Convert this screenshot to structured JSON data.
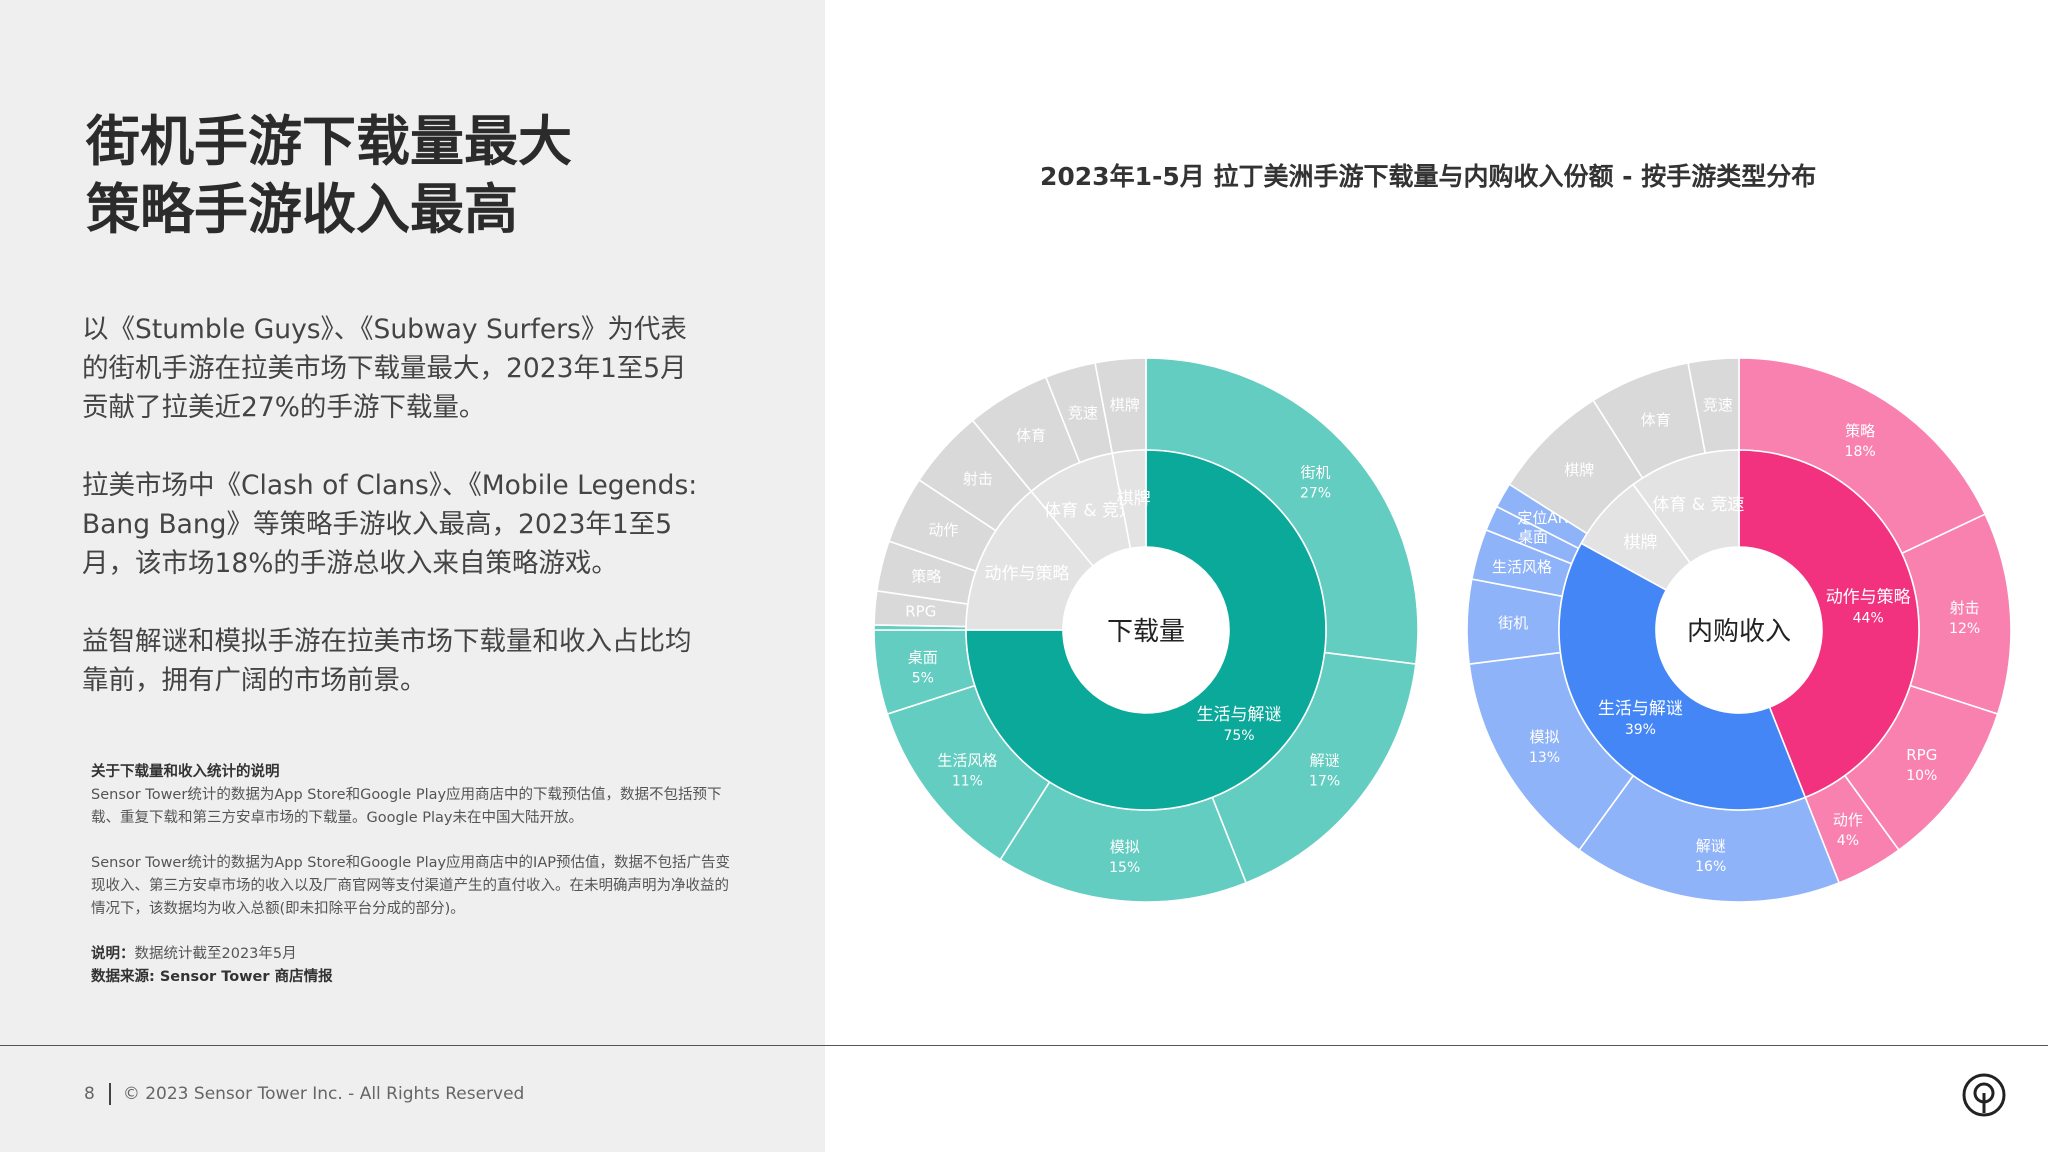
{
  "headline": {
    "line1": "街机手游下载量最大",
    "line2": "策略手游收入最高"
  },
  "paragraphs": [
    "以《Stumble Guys》、《Subway Surfers》为代表的街机手游在拉美市场下载量最大，2023年1至5月贡献了拉美近27%的手游下载量。",
    "拉美市场中《Clash of Clans》、《Mobile Legends: Bang Bang》等策略手游收入最高，2023年1至5月，该市场18%的手游总收入来自策略游戏。",
    "益智解谜和模拟手游在拉美市场下载量和收入占比均靠前，拥有广阔的市场前景。"
  ],
  "notes": {
    "title": "关于下载量和收入统计的说明",
    "text1": "Sensor Tower统计的数据为App Store和Google Play应用商店中的下载预估值，数据不包括预下载、重复下载和第三方安卓市场的下载量。Google Play未在中国大陆开放。",
    "text2": "Sensor Tower统计的数据为App Store和Google Play应用商店中的IAP预估值，数据不包括广告变现收入、第三方安卓市场的收入以及厂商官网等支付渠道产生的直付收入。在未明确声明为净收益的情况下，该数据均为收入总额(即未扣除平台分成的部分)。",
    "explain_label": "说明：",
    "explain_text": "数据统计截至2023年5月",
    "source": "数据来源: Sensor Tower 商店情报"
  },
  "footer": {
    "page": "8",
    "copyright": "© 2023 Sensor Tower Inc. - All Rights Reserved"
  },
  "colors": {
    "teal_dark": "#0aa99a",
    "teal_light": "#62cdc0",
    "pink_dark": "#f2327f",
    "pink_light": "#f981b0",
    "blue_dark": "#4486f5",
    "blue_light": "#8fb3f8",
    "gray_inner": "#e3e3e3",
    "gray_outer": "#d9d9d9"
  },
  "chart_data": {
    "title": "2023年1-5月 拉丁美洲手游下载量与内购收入份额 - 按手游类型分布",
    "type": "sunburst",
    "charts": [
      {
        "center_label": "下载量",
        "inner": [
          {
            "name": "生活与解谜",
            "value": 75,
            "label": "75%",
            "color": "teal_dark"
          },
          {
            "name": "动作与策略",
            "value": 14,
            "label": "",
            "color": "gray_inner"
          },
          {
            "name": "体育 & 竞速",
            "value": 8,
            "label": "",
            "color": "gray_inner"
          },
          {
            "name": "棋牌",
            "value": 3,
            "label": "",
            "color": "gray_inner"
          }
        ],
        "outer": [
          {
            "name": "街机",
            "value": 27,
            "label": "27%",
            "color": "teal_light"
          },
          {
            "name": "解谜",
            "value": 17,
            "label": "17%",
            "color": "teal_light"
          },
          {
            "name": "模拟",
            "value": 15,
            "label": "15%",
            "color": "teal_light"
          },
          {
            "name": "生活风格",
            "value": 11,
            "label": "11%",
            "color": "teal_light"
          },
          {
            "name": "桌面",
            "value": 5,
            "label": "5%",
            "color": "teal_light"
          },
          {
            "name": "",
            "value": 0.3,
            "label": "",
            "color": "teal_light"
          },
          {
            "name": "RPG",
            "value": 2,
            "label": "",
            "color": "gray_outer"
          },
          {
            "name": "策略",
            "value": 3,
            "label": "",
            "color": "gray_outer"
          },
          {
            "name": "动作",
            "value": 4,
            "label": "",
            "color": "gray_outer"
          },
          {
            "name": "射击",
            "value": 4.7,
            "label": "",
            "color": "gray_outer"
          },
          {
            "name": "体育",
            "value": 5,
            "label": "",
            "color": "gray_outer"
          },
          {
            "name": "竞速",
            "value": 3,
            "label": "",
            "color": "gray_outer"
          },
          {
            "name": "棋牌",
            "value": 3,
            "label": "",
            "color": "gray_outer"
          }
        ]
      },
      {
        "center_label": "内购收入",
        "inner": [
          {
            "name": "动作与策略",
            "value": 44,
            "label": "44%",
            "color": "pink_dark"
          },
          {
            "name": "生活与解谜",
            "value": 39,
            "label": "39%",
            "color": "blue_dark"
          },
          {
            "name": "棋牌",
            "value": 7,
            "label": "",
            "color": "gray_inner"
          },
          {
            "name": "体育 & 竞速",
            "value": 10,
            "label": "",
            "color": "gray_inner"
          }
        ],
        "outer": [
          {
            "name": "策略",
            "value": 18,
            "label": "18%",
            "color": "pink_light"
          },
          {
            "name": "射击",
            "value": 12,
            "label": "12%",
            "color": "pink_light"
          },
          {
            "name": "RPG",
            "value": 10,
            "label": "10%",
            "color": "pink_light"
          },
          {
            "name": "动作",
            "value": 4,
            "label": "4%",
            "color": "pink_light"
          },
          {
            "name": "解谜",
            "value": 16,
            "label": "16%",
            "color": "blue_light"
          },
          {
            "name": "模拟",
            "value": 13,
            "label": "13%",
            "color": "blue_light"
          },
          {
            "name": "街机",
            "value": 5,
            "label": "",
            "color": "blue_light"
          },
          {
            "name": "生活风格",
            "value": 3,
            "label": "",
            "color": "blue_light"
          },
          {
            "name": "桌面",
            "value": 1.5,
            "label": "",
            "color": "blue_light"
          },
          {
            "name": "定位AR",
            "value": 1.5,
            "label": "",
            "color": "blue_light"
          },
          {
            "name": "棋牌",
            "value": 7,
            "label": "",
            "color": "gray_outer"
          },
          {
            "name": "体育",
            "value": 6,
            "label": "",
            "color": "gray_outer"
          },
          {
            "name": "竞速",
            "value": 3,
            "label": "",
            "color": "gray_outer"
          }
        ]
      }
    ]
  }
}
